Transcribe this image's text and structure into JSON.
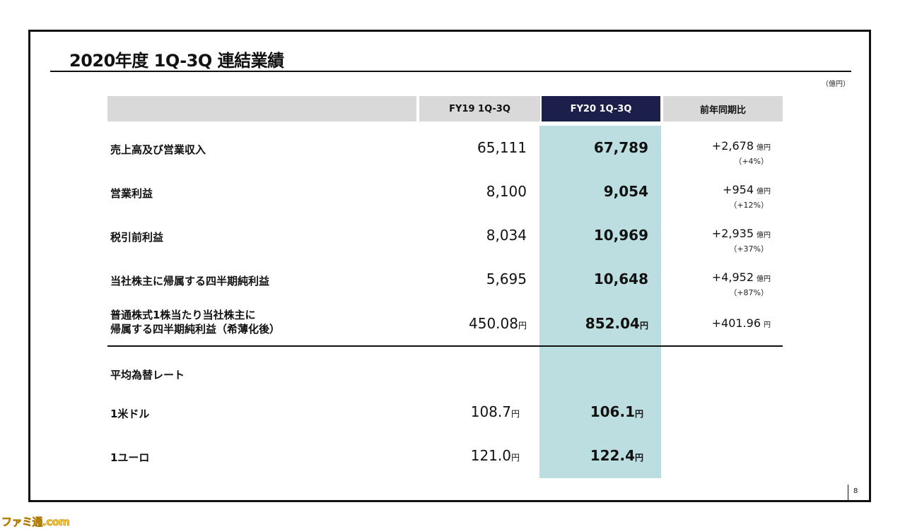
{
  "title": "2020年度 1Q-3Q 連結業績",
  "unit_note": "（億円）",
  "header": {
    "fy19": "FY19 1Q-3Q",
    "fy20": "FY20 1Q-3Q",
    "yoy": "前年同期比"
  },
  "rows": [
    {
      "label": "売上高及び営業収入",
      "fy19": "65,111",
      "fy20": "67,789",
      "yoy": "+2,678",
      "yoy_unit": "億円",
      "yoy_pct": "（+4%）"
    },
    {
      "label": "営業利益",
      "fy19": "8,100",
      "fy20": "9,054",
      "yoy": "+954",
      "yoy_unit": "億円",
      "yoy_pct": "（+12%）"
    },
    {
      "label": "税引前利益",
      "fy19": "8,034",
      "fy20": "10,969",
      "yoy": "+2,935",
      "yoy_unit": "億円",
      "yoy_pct": "（+37%）"
    },
    {
      "label": "当社株主に帰属する四半期純利益",
      "fy19": "5,695",
      "fy20": "10,648",
      "yoy": "+4,952",
      "yoy_unit": "億円",
      "yoy_pct": "（+87%）"
    }
  ],
  "eps": {
    "label_line1": "普通株式1株当たり当社株主に",
    "label_line2": "帰属する四半期純利益（希薄化後）",
    "fy19": "450.08",
    "fy20": "852.04",
    "yoy": "+401.96",
    "unit": "円"
  },
  "fx": {
    "heading": "平均為替レート",
    "rows": [
      {
        "label": "1米ドル",
        "fy19": "108.7",
        "fy20": "106.1",
        "unit": "円"
      },
      {
        "label": "1ユーロ",
        "fy19": "121.0",
        "fy20": "122.4",
        "unit": "円"
      }
    ]
  },
  "page_number": "8",
  "watermark": "ファミ通.com",
  "colors": {
    "header_gray": "#d9d9d9",
    "header_navy": "#1c1f4a",
    "highlight_column": "#bddee0"
  }
}
